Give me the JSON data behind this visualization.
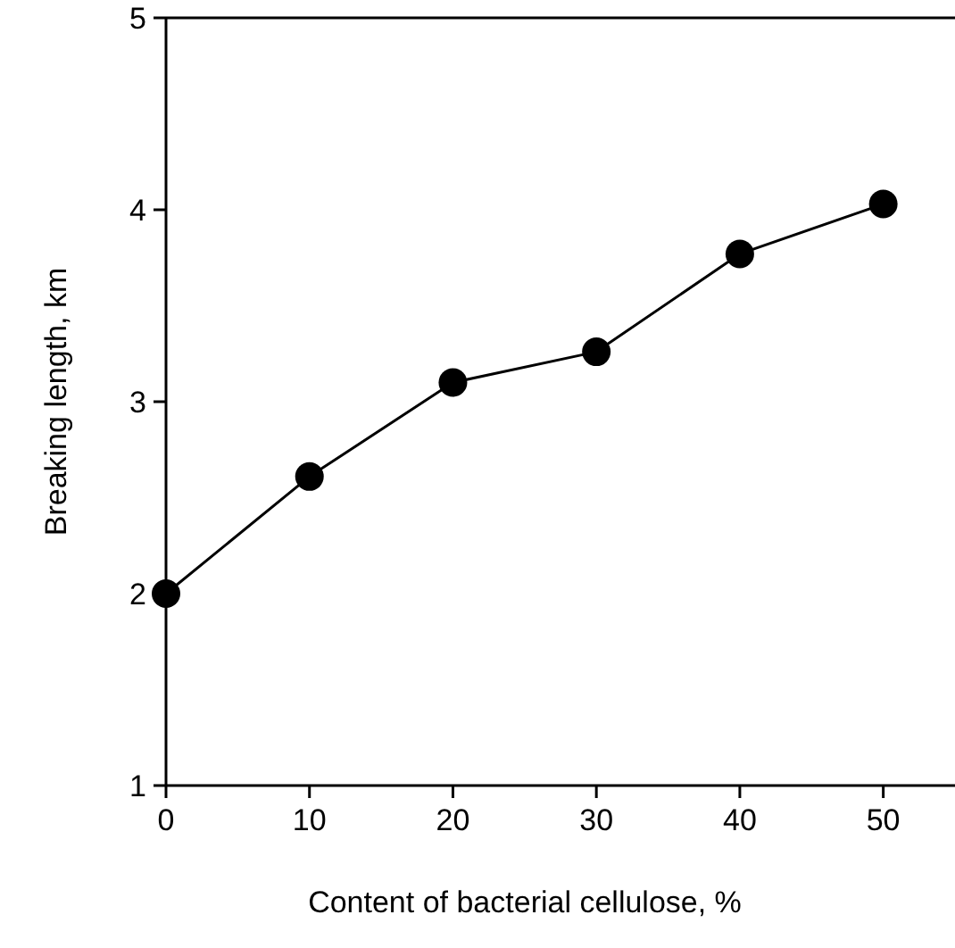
{
  "chart_data": {
    "type": "line",
    "xlabel": "Content of bacterial cellulose, %",
    "ylabel": "Breaking length, km",
    "x": [
      0,
      10,
      20,
      30,
      40,
      50
    ],
    "series": [
      {
        "color": "#000000",
        "values": [
          2.0,
          2.61,
          3.1,
          3.26,
          3.77,
          4.03
        ]
      }
    ],
    "xlim": [
      0,
      55
    ],
    "xticks": [
      0,
      10,
      20,
      30,
      40,
      50
    ],
    "ylim": [
      1,
      5
    ],
    "yticks": [
      1,
      2,
      3,
      4,
      5
    ],
    "marker": "circle",
    "line_style": "solid"
  }
}
